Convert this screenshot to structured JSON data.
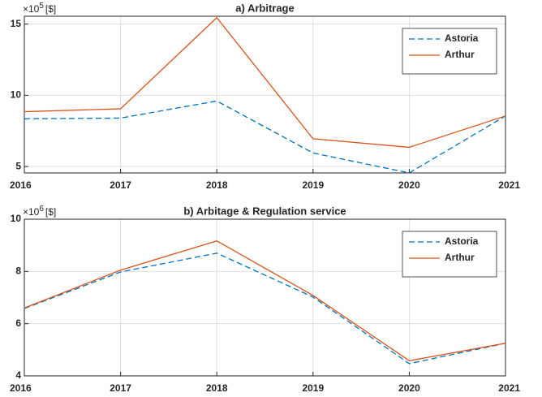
{
  "chart_data": [
    {
      "type": "line",
      "title": "a) Arbitrage",
      "y_multiplier": "×10",
      "y_exponent": "5",
      "y_unit": "[$]",
      "x": [
        2016,
        2017,
        2018,
        2019,
        2020,
        2021
      ],
      "series": [
        {
          "name": "Astoria",
          "color": "#0072bd",
          "dash": true,
          "values": [
            8.35,
            8.4,
            9.6,
            5.95,
            4.55,
            8.55
          ]
        },
        {
          "name": "Arthur",
          "color": "#d95319",
          "dash": false,
          "values": [
            8.85,
            9.05,
            15.45,
            6.95,
            6.35,
            8.55
          ]
        }
      ],
      "xlim": [
        2016,
        2021
      ],
      "xticks": [
        2016,
        2017,
        2018,
        2019,
        2020,
        2021
      ],
      "ylim": [
        4.55,
        15.55
      ],
      "yticks": [
        5,
        10,
        15
      ],
      "grid": true,
      "legend": "northeast"
    },
    {
      "type": "line",
      "title": "b) Arbitage & Regulation service",
      "y_multiplier": "×10",
      "y_exponent": "6",
      "y_unit": "[$]",
      "x": [
        2016,
        2017,
        2018,
        2019,
        2020,
        2021
      ],
      "series": [
        {
          "name": "Astoria",
          "color": "#0072bd",
          "dash": true,
          "values": [
            6.58,
            7.98,
            8.7,
            7.02,
            4.47,
            5.25
          ]
        },
        {
          "name": "Arthur",
          "color": "#d95319",
          "dash": false,
          "values": [
            6.6,
            8.05,
            9.17,
            7.08,
            4.58,
            5.25
          ]
        }
      ],
      "xlim": [
        2016,
        2021
      ],
      "xticks": [
        2016,
        2017,
        2018,
        2019,
        2020,
        2021
      ],
      "ylim": [
        4,
        10
      ],
      "yticks": [
        4,
        6,
        8,
        10
      ],
      "grid": true,
      "legend": "northeast"
    }
  ]
}
